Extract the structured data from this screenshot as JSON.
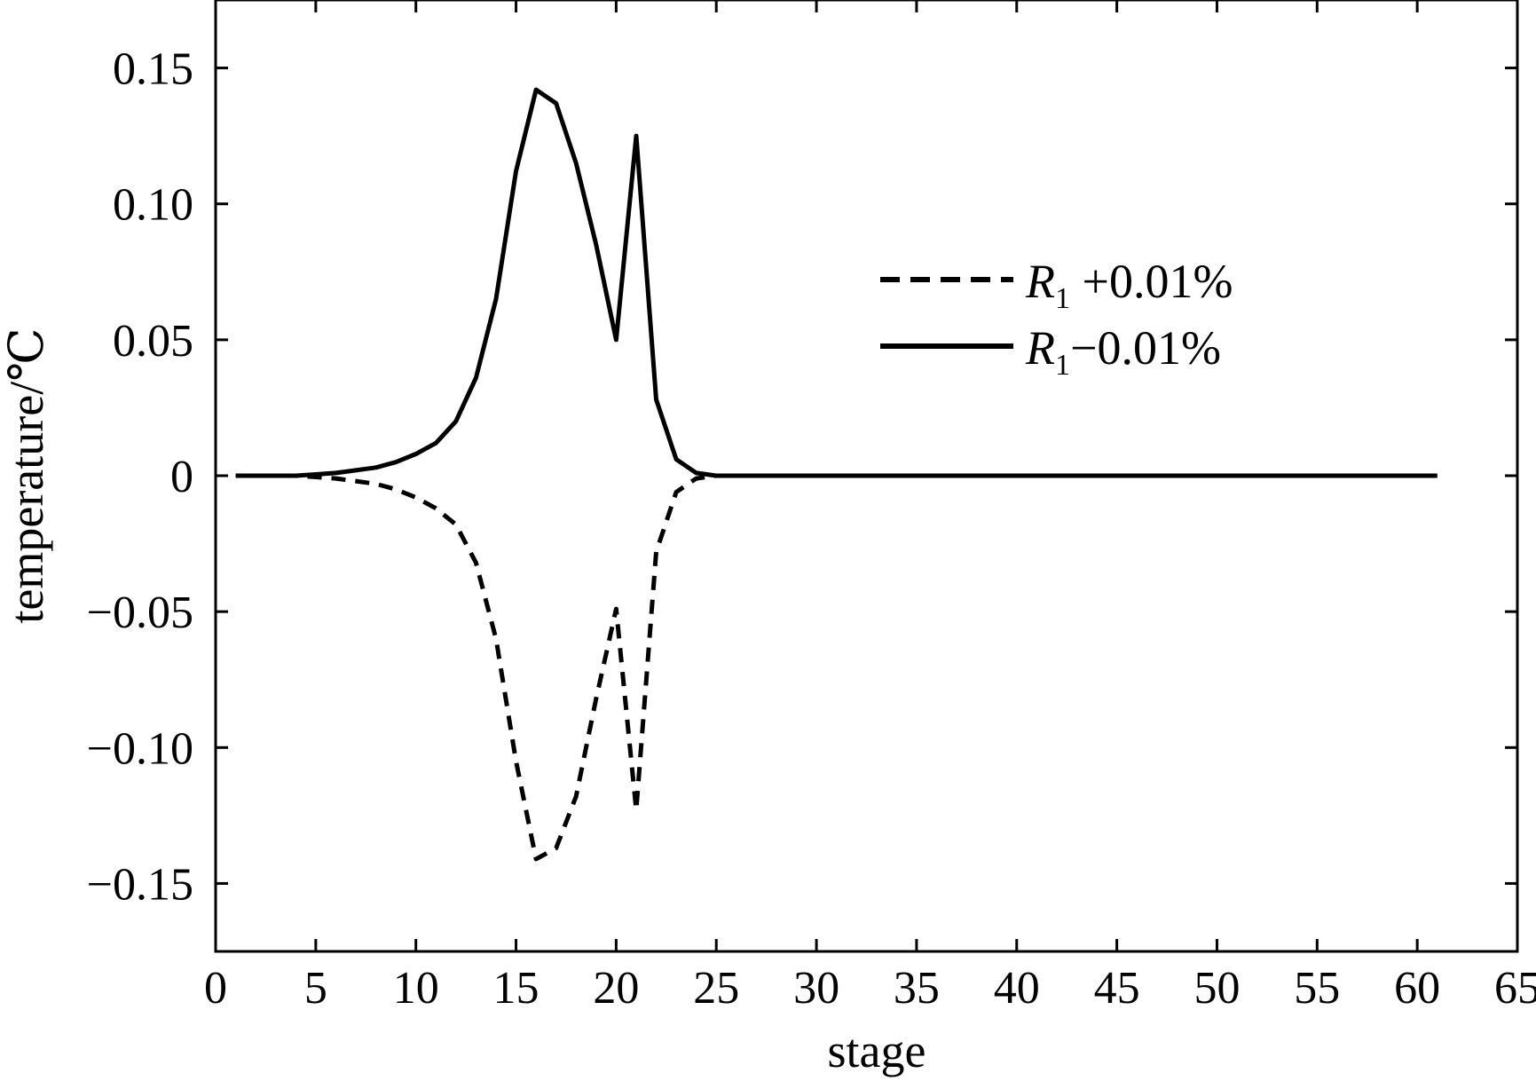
{
  "chart_data": {
    "type": "line",
    "xlabel": "stage",
    "ylabel": "temperature/℃",
    "xlim": [
      0,
      65
    ],
    "ylim": [
      -0.175,
      0.175
    ],
    "xticks": [
      0,
      5,
      10,
      15,
      20,
      25,
      30,
      35,
      40,
      45,
      50,
      55,
      60,
      65
    ],
    "yticks": [
      0.15,
      0.1,
      0.05,
      0,
      -0.05,
      -0.1,
      -0.15
    ],
    "ytick_labels": [
      "0.15",
      "0.10",
      "0.05",
      "0",
      "−0.05",
      "−0.10",
      "−0.15"
    ],
    "legend_position": "upper-right",
    "series": [
      {
        "name": "R1 +0.01%",
        "legend_main": "R",
        "legend_sub": "1",
        "legend_rest": " +0.01%",
        "style": "dashed",
        "color": "#000000",
        "x": [
          1,
          2,
          3,
          4,
          5,
          6,
          7,
          8,
          9,
          10,
          11,
          12,
          13,
          14,
          15,
          16,
          17,
          18,
          19,
          20,
          21,
          22,
          23,
          24,
          25,
          26,
          27,
          28,
          29,
          30,
          31,
          32,
          33,
          34,
          35,
          36,
          37,
          38,
          39,
          40,
          41,
          42,
          43,
          44,
          45,
          46,
          47,
          48,
          49,
          50,
          51,
          52,
          53,
          54,
          55,
          56,
          57,
          58,
          59,
          60,
          61
        ],
        "y": [
          0,
          0,
          0,
          0,
          -0.0005,
          -0.001,
          -0.002,
          -0.003,
          -0.005,
          -0.008,
          -0.012,
          -0.018,
          -0.032,
          -0.06,
          -0.105,
          -0.141,
          -0.137,
          -0.118,
          -0.082,
          -0.049,
          -0.123,
          -0.028,
          -0.006,
          -0.001,
          0,
          0,
          0,
          0,
          0,
          0,
          0,
          0,
          0,
          0,
          0,
          0,
          0,
          0,
          0,
          0,
          0,
          0,
          0,
          0,
          0,
          0,
          0,
          0,
          0,
          0,
          0,
          0,
          0,
          0,
          0,
          0,
          0,
          0,
          0,
          0,
          0
        ]
      },
      {
        "name": "R1−0.01%",
        "legend_main": "R",
        "legend_sub": "1",
        "legend_rest": "−0.01%",
        "style": "solid",
        "color": "#000000",
        "x": [
          1,
          2,
          3,
          4,
          5,
          6,
          7,
          8,
          9,
          10,
          11,
          12,
          13,
          14,
          15,
          16,
          17,
          18,
          19,
          20,
          21,
          22,
          23,
          24,
          25,
          26,
          27,
          28,
          29,
          30,
          31,
          32,
          33,
          34,
          35,
          36,
          37,
          38,
          39,
          40,
          41,
          42,
          43,
          44,
          45,
          46,
          47,
          48,
          49,
          50,
          51,
          52,
          53,
          54,
          55,
          56,
          57,
          58,
          59,
          60,
          61
        ],
        "y": [
          0,
          0,
          0,
          0,
          0.0005,
          0.001,
          0.002,
          0.003,
          0.005,
          0.008,
          0.012,
          0.02,
          0.036,
          0.065,
          0.112,
          0.142,
          0.137,
          0.115,
          0.085,
          0.05,
          0.125,
          0.028,
          0.006,
          0.001,
          0,
          0,
          0,
          0,
          0,
          0,
          0,
          0,
          0,
          0,
          0,
          0,
          0,
          0,
          0,
          0,
          0,
          0,
          0,
          0,
          0,
          0,
          0,
          0,
          0,
          0,
          0,
          0,
          0,
          0,
          0,
          0,
          0,
          0,
          0,
          0,
          0
        ]
      }
    ]
  }
}
